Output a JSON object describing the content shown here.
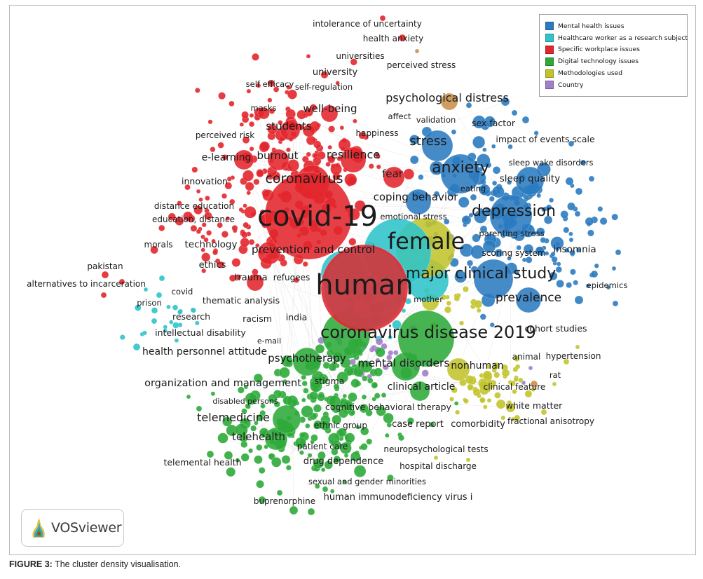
{
  "figure": {
    "caption_label": "FIGURE 3:",
    "caption_text": " The cluster density visualisation.",
    "logo_text": "VOSviewer"
  },
  "legend": [
    {
      "label": "Mental health issues",
      "color": "#2b7bc0"
    },
    {
      "label": "Healthcare worker as a research subject",
      "color": "#2ec4c9"
    },
    {
      "label": "Specific workplace issues",
      "color": "#e2262c"
    },
    {
      "label": "Digital technology issues",
      "color": "#2eaa3a"
    },
    {
      "label": "Methodologies used",
      "color": "#c2c42e"
    },
    {
      "label": "Country",
      "color": "#a080c8"
    }
  ],
  "colors": {
    "mental": "#2b7bc0",
    "healthcare": "#2ec4c9",
    "workplace": "#e2262c",
    "digital": "#2eaa3a",
    "methods": "#c2c42e",
    "country": "#a080c8",
    "other": "#c98f4a"
  },
  "keywords": {
    "intolerance_of_uncertainty": "intolerance of uncertainty",
    "health_anxiety": "health anxiety",
    "universities": "universities",
    "perceived_stress": "perceived stress",
    "university": "university",
    "self_efficacy": "self efficacy",
    "self_regulation": "self-regulation",
    "psychological_distress": "psychological distress",
    "masks": "masks",
    "well_being": "well-being",
    "affect": "affect",
    "validation": "validation",
    "sex_factor": "sex factor",
    "students": "students",
    "perceived_risk": "perceived risk",
    "happiness": "happiness",
    "stress": "stress",
    "impact_of_events_scale": "impact of events scale",
    "e_learning": "e-learning",
    "burnout": "burnout",
    "resilience": "resilience",
    "sleep_wake_disorders": "sleep wake disorders",
    "anxiety": "anxiety",
    "coronavirus": "coronavirus",
    "fear": "fear",
    "sleep_quality": "sleep quality",
    "innovation": "innovation",
    "eating": "eating",
    "coping_behavior": "coping behavior",
    "distance_education": "distance education",
    "education_distance": "education, distance",
    "covid_19": "covid-19",
    "depression": "depression",
    "emotional_stress": "emotional stress",
    "parenting_stress": "parenting stress",
    "female": "female",
    "morals": "morals",
    "technology": "technology",
    "prevention_and_control": "prevention and control",
    "scoring_system": "scoring system",
    "insomnia": "insomnia",
    "pakistan": "pakistan",
    "ethics": "ethics",
    "major_clinical_study": "major clinical study",
    "alternatives_to_incarceration": "alternatives to incarceration",
    "trauma": "trauma",
    "refugees": "refugees",
    "human": "human",
    "epidemics": "epidemics",
    "covid": "covid",
    "prevalence": "prevalence",
    "prison": "prison",
    "thematic_analysis": "thematic analysis",
    "mother": "mother",
    "research": "research",
    "racism": "racism",
    "india": "india",
    "intellectual_disability": "intellectual disability",
    "coronavirus_disease_2019": "coronavirus disease 2019",
    "cohort_studies": "cohort studies",
    "e_mail": "e-mail",
    "health_personnel_attitude": "health personnel attitude",
    "animal": "animal",
    "hypertension": "hypertension",
    "psychotherapy": "psychotherapy",
    "mental_disorders": "mental disorders",
    "nonhuman": "nonhuman",
    "rat": "rat",
    "organization_and_management": "organization and management",
    "stigma": "stigma",
    "clinical_article": "clinical article",
    "clinical_feature": "clinical feature",
    "disabled_persons": "disabled persons",
    "cognitive_behavioral_therapy": "cognitive behavioral therapy",
    "white_matter": "white matter",
    "telemedicine": "telemedicine",
    "ethnic_group": "ethnic group",
    "case_report": "case report",
    "comorbidity": "comorbidity",
    "fractional_anisotropy": "fractional anisotropy",
    "telehealth": "telehealth",
    "patient_care": "patient care",
    "neuropsychological_tests": "neuropsychological tests",
    "telemental_health": "telemental health",
    "drug_dependence": "drug dependence",
    "hospital_discharge": "hospital discharge",
    "sexual_and_gender_minorities": "sexual and gender minorities",
    "buprenorphine": "buprenorphine",
    "human_immunodeficiency_virus_i": "human immunodeficiency virus i"
  }
}
